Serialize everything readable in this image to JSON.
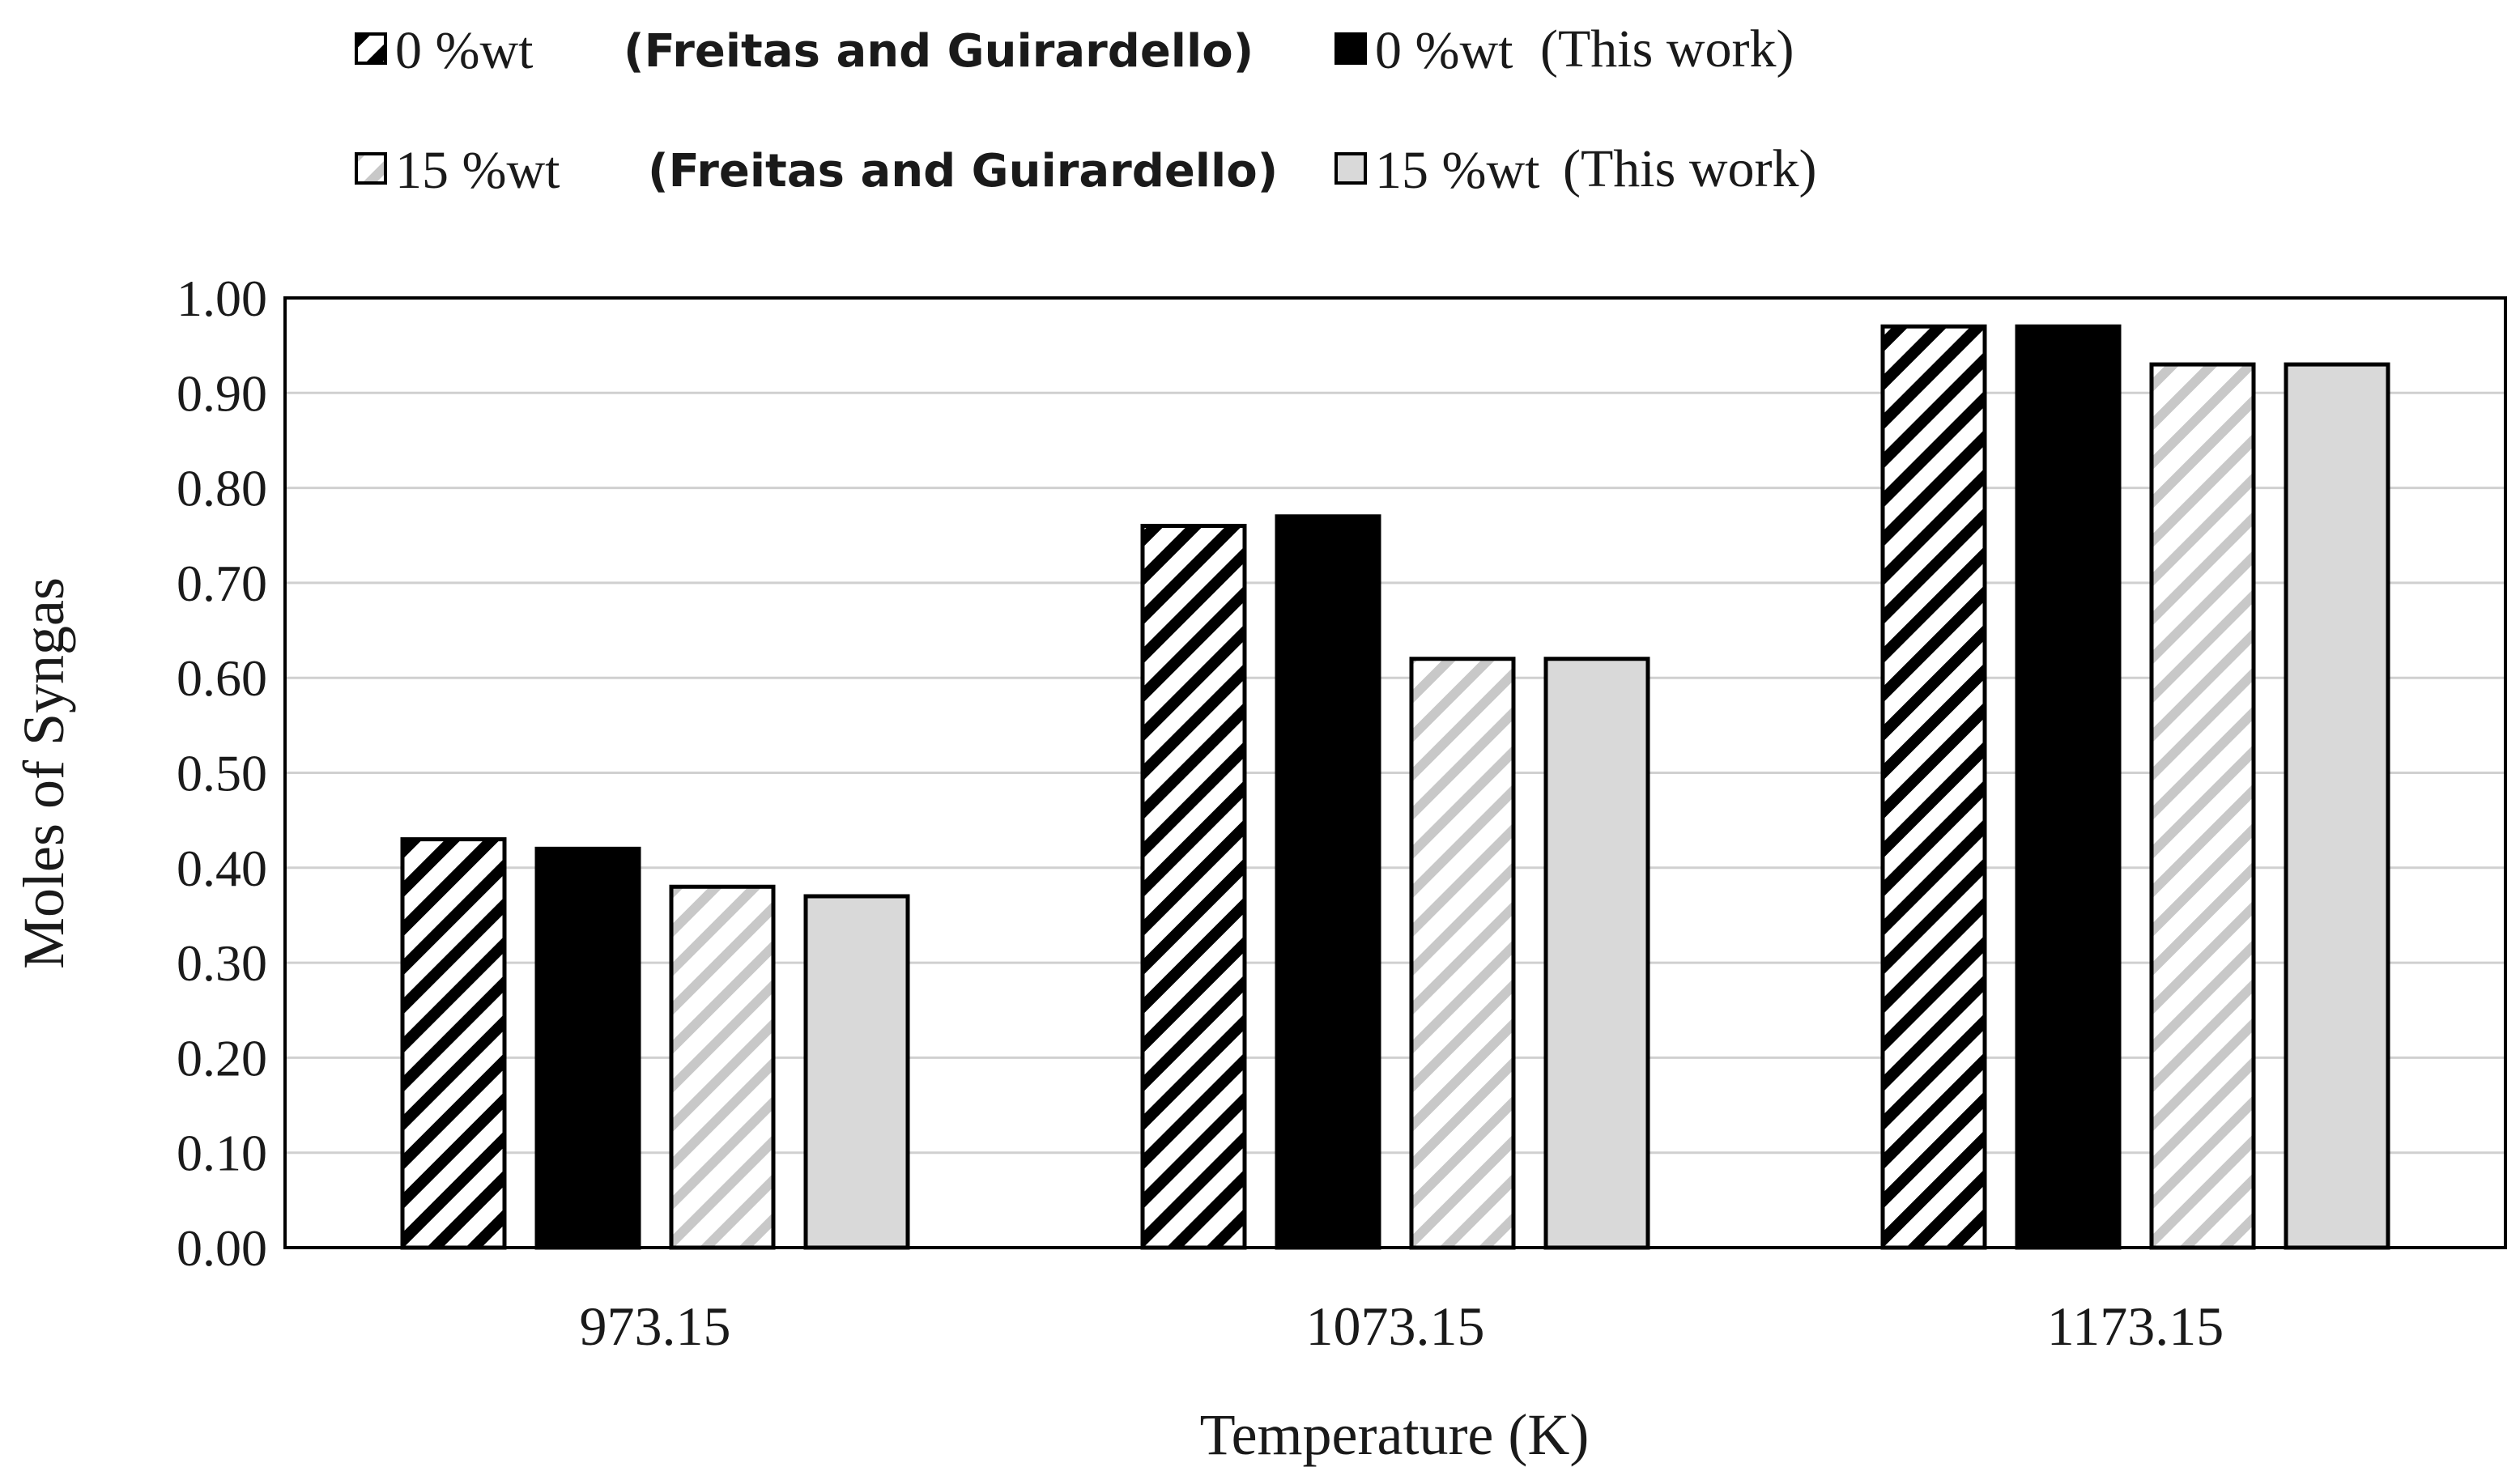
{
  "chart_data": {
    "type": "bar",
    "categories": [
      "973.15",
      "1073.15",
      "1173.15"
    ],
    "xlabel": "Temperature (K)",
    "ylabel": "Moles of Syngas",
    "ylim": [
      0,
      1.0
    ],
    "yticks": [
      "0.00",
      "0.10",
      "0.20",
      "0.30",
      "0.40",
      "0.50",
      "0.60",
      "0.70",
      "0.80",
      "0.90",
      "1.00"
    ],
    "ytick_values": [
      0,
      0.1,
      0.2,
      0.3,
      0.4,
      0.5,
      0.6,
      0.7,
      0.8,
      0.9,
      1.0
    ],
    "grid": true,
    "legend_position": "top",
    "series": [
      {
        "name": "0 %wt (Freitas and Guirardello)",
        "label_value": "0 %wt",
        "label_source": "(Freitas and Guirardello)",
        "fill": "hatch-dark",
        "values": [
          0.43,
          0.76,
          0.97
        ]
      },
      {
        "name": "0 %wt (This work)",
        "label_value": "0 %wt",
        "label_source": "(This work)",
        "fill": "#000000",
        "values": [
          0.42,
          0.77,
          0.97
        ]
      },
      {
        "name": "15 %wt (Freitas and Guirardello)",
        "label_value": "15 %wt",
        "label_source": "(Freitas and Guirardello)",
        "fill": "hatch-light",
        "values": [
          0.38,
          0.62,
          0.93
        ]
      },
      {
        "name": "15 %wt (This work)",
        "label_value": "15 %wt",
        "label_source": "(This work)",
        "fill": "#d9d9d9",
        "values": [
          0.37,
          0.62,
          0.93
        ]
      }
    ],
    "colors": {
      "axis": "#000000",
      "grid": "#d0d0d0",
      "hatch_dark": "#000000",
      "hatch_light": "#c8c8c8",
      "light_gray": "#d9d9d9",
      "text": "#1a1a1a"
    }
  }
}
